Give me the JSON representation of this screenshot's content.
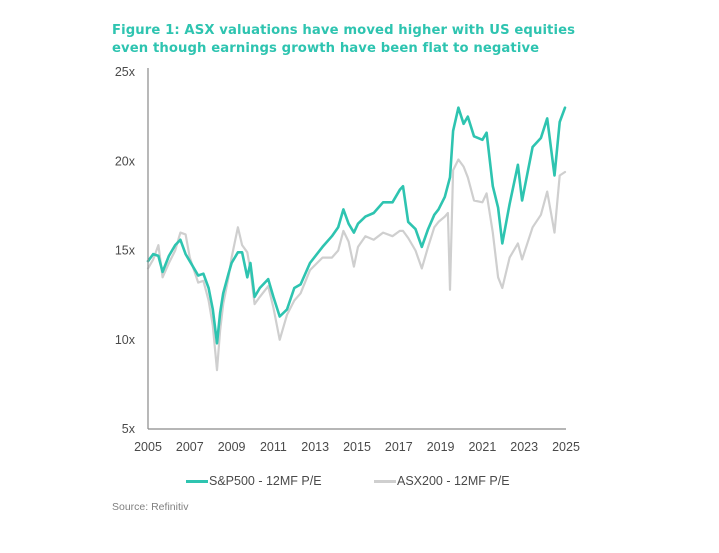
{
  "title": "Figure 1: ASX valuations have moved higher with US equities even though earnings growth have been flat to negative",
  "source": "Source: Refinitiv",
  "chart_data": {
    "type": "line",
    "title": "Figure 1: ASX valuations have moved higher with US equities even though earnings growth have been flat to negative",
    "xlabel": "",
    "ylabel": "",
    "xlim": [
      2005,
      2025
    ],
    "ylim": [
      5,
      25
    ],
    "x_ticks": [
      2005,
      2007,
      2009,
      2011,
      2013,
      2015,
      2017,
      2019,
      2021,
      2023,
      2025
    ],
    "x_tick_labels": [
      "2005",
      "2007",
      "2009",
      "2011",
      "2013",
      "2015",
      "2017",
      "2019",
      "2021",
      "2023",
      "2025"
    ],
    "y_ticks": [
      5,
      10,
      15,
      20,
      25
    ],
    "y_tick_labels": [
      "5x",
      "10x",
      "15x",
      "20x",
      "25x"
    ],
    "grid": false,
    "legend_position": "bottom",
    "series": [
      {
        "name": "S&P500 - 12MF P/E",
        "color": "#2ec4b0",
        "points": [
          [
            2005.0,
            14.4
          ],
          [
            2005.25,
            14.8
          ],
          [
            2005.5,
            14.7
          ],
          [
            2005.7,
            13.8
          ],
          [
            2006.0,
            14.7
          ],
          [
            2006.3,
            15.3
          ],
          [
            2006.55,
            15.6
          ],
          [
            2006.8,
            14.8
          ],
          [
            2007.0,
            14.4
          ],
          [
            2007.4,
            13.6
          ],
          [
            2007.65,
            13.7
          ],
          [
            2007.9,
            12.9
          ],
          [
            2008.1,
            11.7
          ],
          [
            2008.3,
            9.8
          ],
          [
            2008.45,
            11.5
          ],
          [
            2008.6,
            12.6
          ],
          [
            2008.85,
            13.7
          ],
          [
            2009.0,
            14.3
          ],
          [
            2009.3,
            14.9
          ],
          [
            2009.5,
            14.9
          ],
          [
            2009.75,
            13.5
          ],
          [
            2009.9,
            14.3
          ],
          [
            2010.1,
            12.4
          ],
          [
            2010.35,
            12.9
          ],
          [
            2010.75,
            13.4
          ],
          [
            2011.0,
            12.4
          ],
          [
            2011.3,
            11.3
          ],
          [
            2011.65,
            11.7
          ],
          [
            2012.0,
            12.9
          ],
          [
            2012.3,
            13.1
          ],
          [
            2012.75,
            14.3
          ],
          [
            2013.35,
            15.2
          ],
          [
            2013.8,
            15.8
          ],
          [
            2014.1,
            16.3
          ],
          [
            2014.35,
            17.3
          ],
          [
            2014.6,
            16.5
          ],
          [
            2014.85,
            16.0
          ],
          [
            2015.05,
            16.5
          ],
          [
            2015.4,
            16.9
          ],
          [
            2015.8,
            17.1
          ],
          [
            2016.25,
            17.7
          ],
          [
            2016.7,
            17.7
          ],
          [
            2017.05,
            18.4
          ],
          [
            2017.2,
            18.6
          ],
          [
            2017.45,
            16.6
          ],
          [
            2017.8,
            16.2
          ],
          [
            2018.1,
            15.2
          ],
          [
            2018.4,
            16.2
          ],
          [
            2018.7,
            17.0
          ],
          [
            2018.9,
            17.3
          ],
          [
            2019.2,
            18.0
          ],
          [
            2019.45,
            19.1
          ],
          [
            2019.6,
            21.7
          ],
          [
            2019.85,
            23.0
          ],
          [
            2020.1,
            22.1
          ],
          [
            2020.3,
            22.5
          ],
          [
            2020.6,
            21.4
          ],
          [
            2021.0,
            21.2
          ],
          [
            2021.2,
            21.6
          ],
          [
            2021.5,
            18.6
          ],
          [
            2021.75,
            17.4
          ],
          [
            2021.95,
            15.4
          ],
          [
            2022.3,
            17.6
          ],
          [
            2022.7,
            19.8
          ],
          [
            2022.9,
            17.8
          ],
          [
            2023.4,
            20.8
          ],
          [
            2023.8,
            21.3
          ],
          [
            2024.1,
            22.4
          ],
          [
            2024.45,
            19.2
          ],
          [
            2024.7,
            22.2
          ],
          [
            2024.95,
            23.0
          ]
        ]
      },
      {
        "name": "ASX200 - 12MF P/E",
        "color": "#cfcfcf",
        "points": [
          [
            2005.0,
            14.0
          ],
          [
            2005.25,
            14.5
          ],
          [
            2005.5,
            15.3
          ],
          [
            2005.7,
            13.5
          ],
          [
            2006.0,
            14.3
          ],
          [
            2006.3,
            15.0
          ],
          [
            2006.55,
            16.0
          ],
          [
            2006.8,
            15.9
          ],
          [
            2007.0,
            14.6
          ],
          [
            2007.4,
            13.2
          ],
          [
            2007.65,
            13.3
          ],
          [
            2007.9,
            12.2
          ],
          [
            2008.1,
            10.8
          ],
          [
            2008.3,
            8.3
          ],
          [
            2008.45,
            10.5
          ],
          [
            2008.6,
            12.0
          ],
          [
            2008.85,
            13.5
          ],
          [
            2009.0,
            14.6
          ],
          [
            2009.3,
            16.3
          ],
          [
            2009.5,
            15.3
          ],
          [
            2009.75,
            14.9
          ],
          [
            2009.9,
            13.9
          ],
          [
            2010.1,
            12.0
          ],
          [
            2010.35,
            12.4
          ],
          [
            2010.75,
            13.0
          ],
          [
            2011.0,
            11.8
          ],
          [
            2011.3,
            10.0
          ],
          [
            2011.65,
            11.4
          ],
          [
            2012.0,
            12.2
          ],
          [
            2012.3,
            12.6
          ],
          [
            2012.75,
            13.9
          ],
          [
            2013.35,
            14.6
          ],
          [
            2013.8,
            14.6
          ],
          [
            2014.1,
            15.0
          ],
          [
            2014.35,
            16.1
          ],
          [
            2014.6,
            15.5
          ],
          [
            2014.85,
            14.1
          ],
          [
            2015.05,
            15.2
          ],
          [
            2015.4,
            15.8
          ],
          [
            2015.8,
            15.6
          ],
          [
            2016.25,
            16.0
          ],
          [
            2016.7,
            15.8
          ],
          [
            2017.05,
            16.1
          ],
          [
            2017.2,
            16.1
          ],
          [
            2017.45,
            15.7
          ],
          [
            2017.8,
            15.0
          ],
          [
            2018.1,
            14.0
          ],
          [
            2018.4,
            15.2
          ],
          [
            2018.7,
            16.3
          ],
          [
            2018.9,
            16.6
          ],
          [
            2019.2,
            16.9
          ],
          [
            2019.35,
            17.1
          ],
          [
            2019.45,
            12.8
          ],
          [
            2019.6,
            19.5
          ],
          [
            2019.85,
            20.1
          ],
          [
            2020.1,
            19.7
          ],
          [
            2020.3,
            19.1
          ],
          [
            2020.6,
            17.8
          ],
          [
            2021.0,
            17.7
          ],
          [
            2021.2,
            18.2
          ],
          [
            2021.5,
            16.0
          ],
          [
            2021.75,
            13.5
          ],
          [
            2021.95,
            12.9
          ],
          [
            2022.3,
            14.6
          ],
          [
            2022.7,
            15.4
          ],
          [
            2022.9,
            14.5
          ],
          [
            2023.4,
            16.3
          ],
          [
            2023.8,
            17.0
          ],
          [
            2024.1,
            18.3
          ],
          [
            2024.45,
            16.0
          ],
          [
            2024.7,
            19.2
          ],
          [
            2024.95,
            19.4
          ]
        ]
      }
    ]
  },
  "legend": [
    {
      "label": "S&P500 - 12MF P/E",
      "color": "#2ec4b0"
    },
    {
      "label": "ASX200 - 12MF P/E",
      "color": "#cfcfcf"
    }
  ]
}
